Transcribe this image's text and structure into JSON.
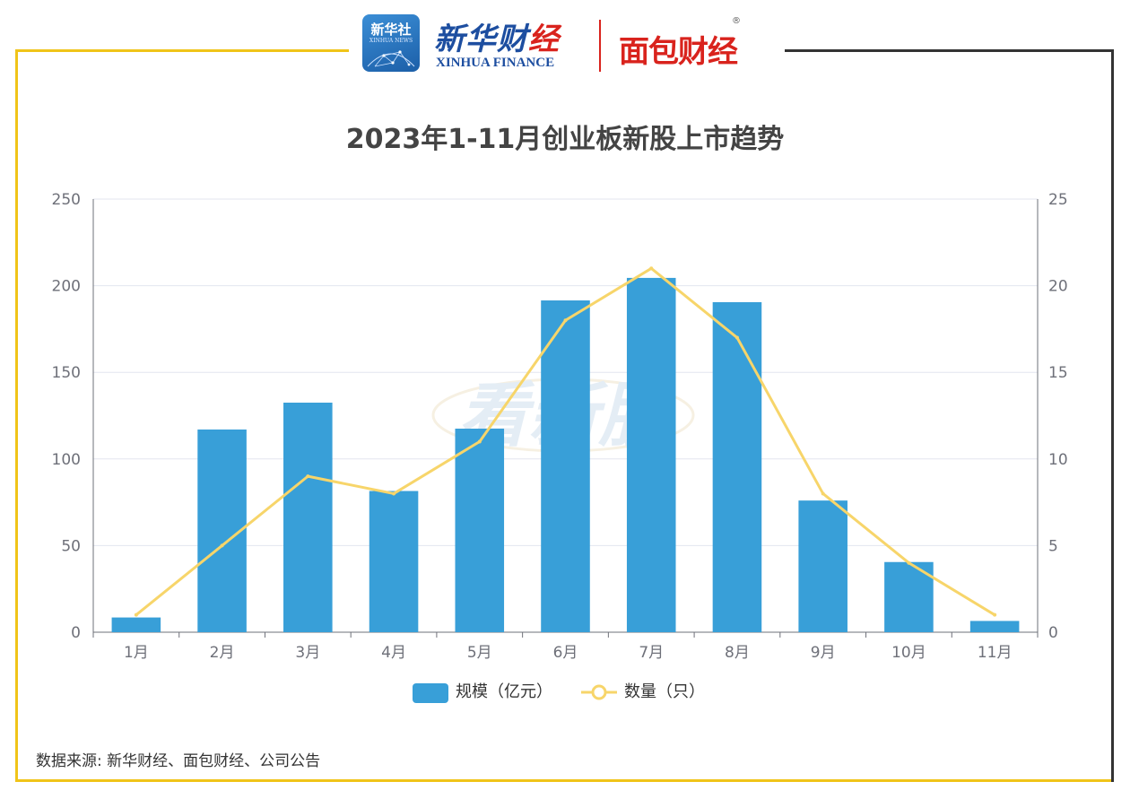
{
  "header": {
    "xinhua_badge_text": "新华社",
    "xinhua_badge_sub": "XINHUA NEWS",
    "xinhua_finance_cn_blue": "新华财",
    "xinhua_finance_cn_red": "经",
    "xinhua_finance_en": "XINHUA FINANCE",
    "mianbao_name": "面包财经",
    "registered_mark": "®"
  },
  "watermark_text": "看新股",
  "colors": {
    "bar": "#389fd8",
    "line": "#f7d56a",
    "frame_yellow": "#f0c419",
    "frame_dark": "#333333"
  },
  "chart_data": {
    "type": "bar",
    "title": "2023年1-11月创业板新股上市趋势",
    "categories": [
      "1月",
      "2月",
      "3月",
      "4月",
      "5月",
      "6月",
      "7月",
      "8月",
      "9月",
      "10月",
      "11月"
    ],
    "series": [
      {
        "name": "规模（亿元）",
        "type": "bar",
        "axis": "left",
        "values": [
          8.5,
          117,
          132.5,
          81.5,
          117.5,
          191.5,
          204.5,
          190.5,
          76,
          40.5,
          6.5
        ]
      },
      {
        "name": "数量（只）",
        "type": "line",
        "axis": "right",
        "values": [
          1,
          5,
          9,
          8,
          11,
          18,
          21,
          17,
          8,
          4,
          1
        ]
      }
    ],
    "y_left": {
      "min": 0,
      "max": 250,
      "ticks": [
        "0",
        "50",
        "100",
        "150",
        "200",
        "250"
      ]
    },
    "y_right": {
      "min": 0,
      "max": 25,
      "ticks": [
        "0",
        "5",
        "10",
        "15",
        "20",
        "25"
      ]
    },
    "grid": true,
    "legend_position": "bottom-center"
  },
  "source": "数据来源: 新华财经、面包财经、公司公告"
}
